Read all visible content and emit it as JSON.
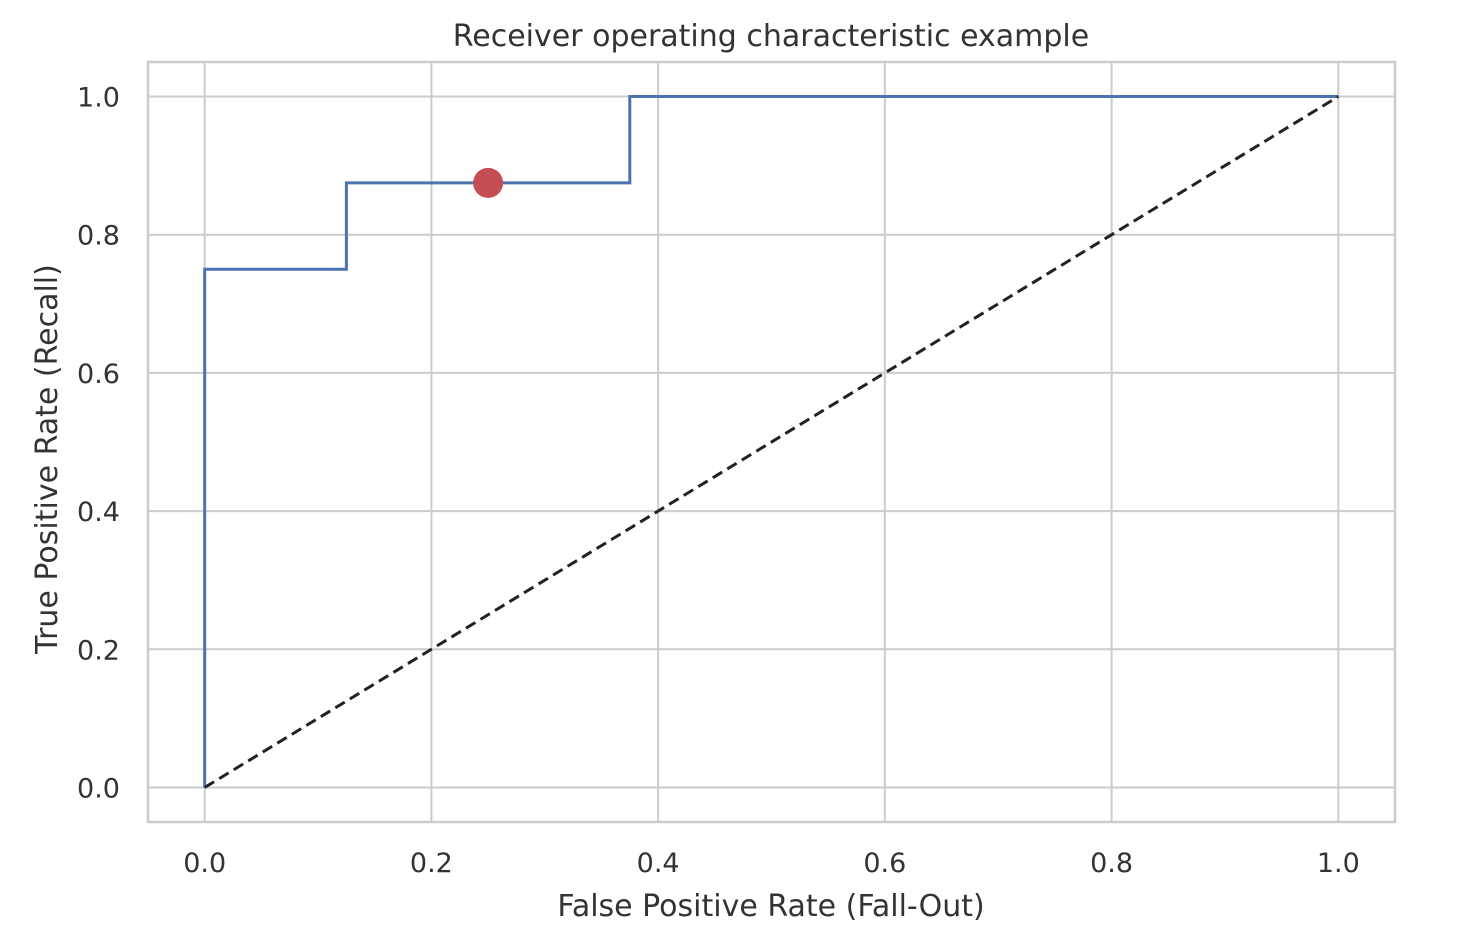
{
  "chart_data": {
    "type": "line",
    "title": "Receiver operating characteristic example",
    "xlabel": "False Positive Rate (Fall-Out)",
    "ylabel": "True Positive Rate (Recall)",
    "xlim": [
      -0.05,
      1.05
    ],
    "ylim": [
      -0.05,
      1.05
    ],
    "xticks": [
      0.0,
      0.2,
      0.4,
      0.6,
      0.8,
      1.0
    ],
    "yticks": [
      0.0,
      0.2,
      0.4,
      0.6,
      0.8,
      1.0
    ],
    "xtick_labels": [
      "0.0",
      "0.2",
      "0.4",
      "0.6",
      "0.8",
      "1.0"
    ],
    "ytick_labels": [
      "0.0",
      "0.2",
      "0.4",
      "0.6",
      "0.8",
      "1.0"
    ],
    "grid": true,
    "series": [
      {
        "style": "step",
        "color": "#4c72b0",
        "x": [
          0.0,
          0.0,
          0.125,
          0.125,
          0.375,
          0.375,
          1.0
        ],
        "y": [
          0.0,
          0.75,
          0.75,
          0.875,
          0.875,
          1.0,
          1.0
        ]
      },
      {
        "style": "dashed",
        "color": "#222222",
        "x": [
          0.0,
          1.0
        ],
        "y": [
          0.0,
          1.0
        ]
      }
    ],
    "marker": {
      "x": 0.25,
      "y": 0.875,
      "color": "#c44e52"
    }
  }
}
